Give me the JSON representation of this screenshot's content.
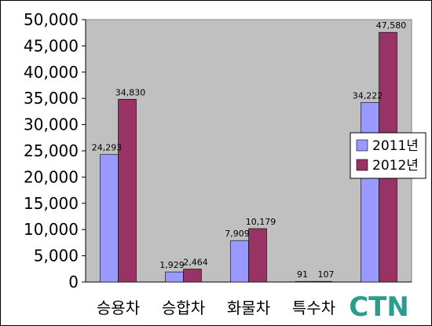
{
  "chart_data": {
    "type": "bar",
    "categories": [
      "승용차",
      "승합차",
      "화물차",
      "특수차",
      ""
    ],
    "series": [
      {
        "name": "2011년",
        "values": [
          24293,
          1929,
          7909,
          91,
          34222
        ],
        "labels": [
          "24,293",
          "1,929",
          "7,909",
          "91",
          "34,222"
        ],
        "color": "#9999FF"
      },
      {
        "name": "2012년",
        "values": [
          34830,
          2464,
          10179,
          107,
          47580
        ],
        "labels": [
          "34,830",
          "2,464",
          "10,179",
          "107",
          "47,580"
        ],
        "color": "#993366"
      }
    ],
    "ylim": [
      0,
      50000
    ],
    "yticks": [
      0,
      5000,
      10000,
      15000,
      20000,
      25000,
      30000,
      35000,
      40000,
      45000,
      50000
    ],
    "ytick_labels": [
      "0",
      "5,000",
      "10,000",
      "15,000",
      "20,000",
      "25,000",
      "30,000",
      "35,000",
      "40,000",
      "45,000",
      "50,000"
    ],
    "plot_background": "#C0C0C0",
    "grid": false,
    "legend_position": "right"
  },
  "logo": {
    "text": "CTN",
    "color": "#2E9C8C"
  }
}
